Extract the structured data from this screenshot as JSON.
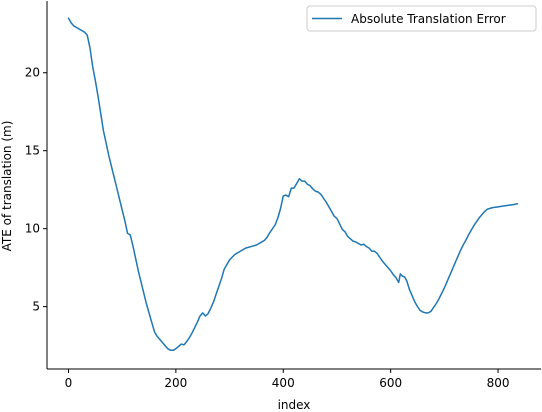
{
  "chart_data": {
    "type": "line",
    "title": "",
    "xlabel": "index",
    "ylabel": "ATE of translation (m)",
    "xlim": [
      -40,
      880
    ],
    "ylim": [
      1.0,
      24.6
    ],
    "xticks": [
      0,
      200,
      400,
      600,
      800
    ],
    "yticks": [
      5,
      10,
      15,
      20
    ],
    "grid": false,
    "legend_position": "top-right",
    "series": [
      {
        "name": "Absolute Translation Error",
        "color": "#1f77b4",
        "x": [
          0,
          5,
          10,
          15,
          20,
          25,
          30,
          35,
          40,
          45,
          50,
          55,
          60,
          65,
          70,
          75,
          80,
          85,
          90,
          95,
          100,
          105,
          110,
          115,
          120,
          125,
          130,
          135,
          140,
          145,
          150,
          155,
          160,
          165,
          170,
          175,
          180,
          185,
          190,
          195,
          200,
          205,
          210,
          215,
          220,
          225,
          230,
          235,
          240,
          245,
          250,
          255,
          260,
          265,
          270,
          275,
          280,
          285,
          290,
          295,
          300,
          310,
          320,
          330,
          340,
          350,
          355,
          360,
          365,
          370,
          375,
          380,
          385,
          390,
          395,
          400,
          405,
          410,
          415,
          420,
          425,
          430,
          435,
          440,
          445,
          450,
          455,
          460,
          465,
          470,
          475,
          480,
          485,
          490,
          495,
          500,
          505,
          510,
          515,
          520,
          525,
          530,
          535,
          540,
          545,
          550,
          555,
          560,
          565,
          570,
          575,
          580,
          585,
          590,
          595,
          600,
          605,
          610,
          615,
          618,
          622,
          626,
          630,
          635,
          640,
          645,
          650,
          655,
          660,
          665,
          670,
          675,
          680,
          685,
          690,
          695,
          700,
          705,
          710,
          715,
          720,
          725,
          730,
          735,
          740,
          745,
          750,
          755,
          760,
          765,
          770,
          775,
          780,
          785,
          790,
          800,
          810,
          820,
          830,
          836
        ],
        "y": [
          23.5,
          23.2,
          23.0,
          22.9,
          22.8,
          22.7,
          22.6,
          22.4,
          21.6,
          20.4,
          19.5,
          18.5,
          17.4,
          16.3,
          15.5,
          14.7,
          14.0,
          13.3,
          12.6,
          11.9,
          11.2,
          10.5,
          9.7,
          9.6,
          8.9,
          8.1,
          7.3,
          6.6,
          5.9,
          5.2,
          4.6,
          4.0,
          3.4,
          3.1,
          2.9,
          2.7,
          2.5,
          2.3,
          2.2,
          2.2,
          2.3,
          2.45,
          2.6,
          2.55,
          2.75,
          3.0,
          3.3,
          3.65,
          4.0,
          4.4,
          4.6,
          4.4,
          4.55,
          4.9,
          5.3,
          5.8,
          6.3,
          6.8,
          7.4,
          7.7,
          8.0,
          8.35,
          8.55,
          8.75,
          8.85,
          8.95,
          9.05,
          9.15,
          9.25,
          9.45,
          9.75,
          10.0,
          10.25,
          10.7,
          11.3,
          12.1,
          12.15,
          12.05,
          12.6,
          12.6,
          12.9,
          13.2,
          13.05,
          13.05,
          12.85,
          12.75,
          12.55,
          12.4,
          12.35,
          12.2,
          11.95,
          11.7,
          11.4,
          11.1,
          10.8,
          10.65,
          10.3,
          9.95,
          9.8,
          9.5,
          9.35,
          9.2,
          9.15,
          9.05,
          8.95,
          9.0,
          8.85,
          8.75,
          8.55,
          8.55,
          8.4,
          8.15,
          7.9,
          7.7,
          7.5,
          7.3,
          7.05,
          6.85,
          6.55,
          7.1,
          6.95,
          6.9,
          6.65,
          6.1,
          5.7,
          5.3,
          5.0,
          4.75,
          4.65,
          4.6,
          4.6,
          4.7,
          4.95,
          5.2,
          5.5,
          5.85,
          6.2,
          6.6,
          7.0,
          7.4,
          7.8,
          8.2,
          8.6,
          8.95,
          9.25,
          9.6,
          9.9,
          10.2,
          10.45,
          10.7,
          10.9,
          11.1,
          11.25,
          11.3,
          11.35,
          11.4,
          11.45,
          11.5,
          11.55,
          11.6
        ]
      }
    ]
  }
}
